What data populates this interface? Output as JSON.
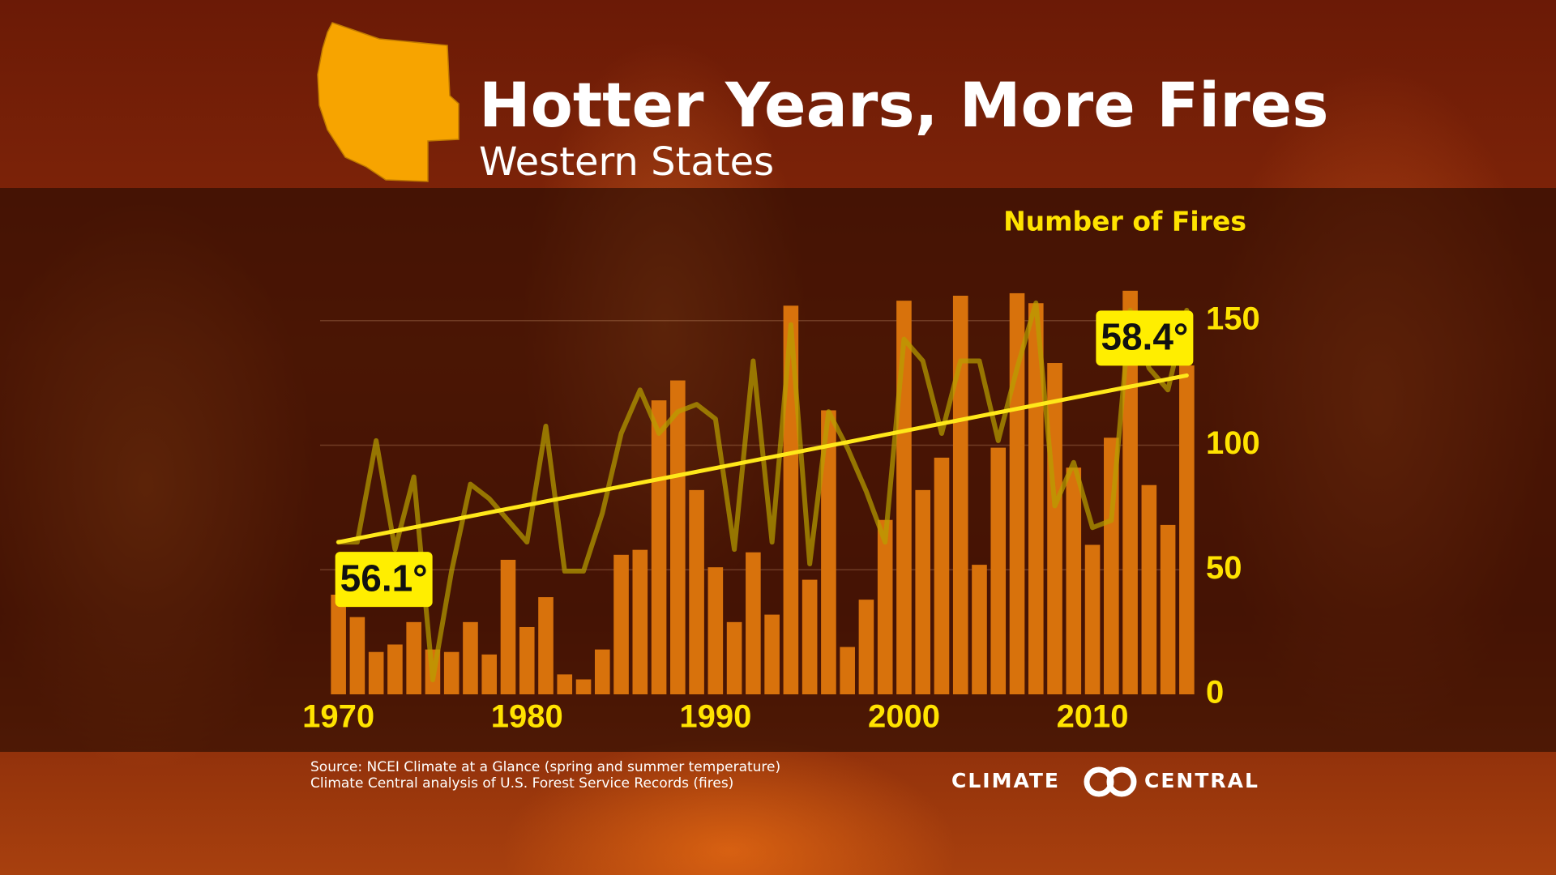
{
  "chart_data": {
    "type": "bar",
    "title": "Hotter Years, More Fires",
    "subtitle": "Western States",
    "y_label": "Number of Fires",
    "x": [
      1970,
      1971,
      1972,
      1973,
      1974,
      1975,
      1976,
      1977,
      1978,
      1979,
      1980,
      1981,
      1982,
      1983,
      1984,
      1985,
      1986,
      1987,
      1988,
      1989,
      1990,
      1991,
      1992,
      1993,
      1994,
      1995,
      1996,
      1997,
      1998,
      1999,
      2000,
      2001,
      2002,
      2003,
      2004,
      2005,
      2006,
      2007,
      2008,
      2009,
      2010,
      2011,
      2012,
      2013,
      2014,
      2015
    ],
    "xlim": [
      1969.5,
      2015.5
    ],
    "xticks": [
      1970,
      1980,
      1990,
      2000,
      2010
    ],
    "ylim": [
      0,
      160
    ],
    "yticks": [
      0,
      50,
      100,
      150
    ],
    "y2lim": [
      54,
      59.5
    ],
    "grid": true,
    "series": [
      {
        "type": "bar",
        "color": "#d8720c",
        "values": [
          40,
          31,
          17,
          20,
          29,
          18,
          17,
          29,
          16,
          54,
          27,
          39,
          8,
          6,
          18,
          56,
          58,
          118,
          126,
          82,
          51,
          29,
          57,
          32,
          156,
          46,
          114,
          19,
          38,
          70,
          158,
          82,
          95,
          160,
          52,
          99,
          161,
          157,
          133,
          91,
          60,
          103,
          162,
          84,
          68,
          132
        ]
      },
      {
        "type": "line",
        "axis": "y2",
        "color": "#b8a000",
        "values": [
          56.1,
          56.1,
          57.5,
          56.0,
          57.0,
          54.2,
          55.7,
          56.9,
          56.7,
          56.4,
          56.1,
          57.7,
          55.7,
          55.7,
          56.5,
          57.6,
          58.2,
          57.6,
          57.9,
          58.0,
          57.8,
          56.0,
          58.6,
          56.1,
          59.1,
          55.8,
          57.9,
          57.4,
          56.8,
          56.1,
          58.9,
          58.6,
          57.6,
          58.6,
          58.6,
          57.5,
          58.5,
          59.4,
          56.6,
          57.2,
          56.3,
          56.4,
          59.3,
          58.5,
          58.2,
          59.3
        ]
      },
      {
        "type": "line",
        "axis": "y2",
        "color": "#ffe81a",
        "x": [
          1970,
          2015
        ],
        "values": [
          56.1,
          58.4
        ],
        "value_labels": [
          "56.1°",
          "58.4°"
        ]
      }
    ]
  },
  "source": [
    "Source: NCEI Climate at a Glance (spring and summer temperature)",
    "Climate Central analysis of U.S. Forest Service Records (fires)"
  ],
  "brand": [
    "CLIMATE",
    "CENTRAL"
  ]
}
